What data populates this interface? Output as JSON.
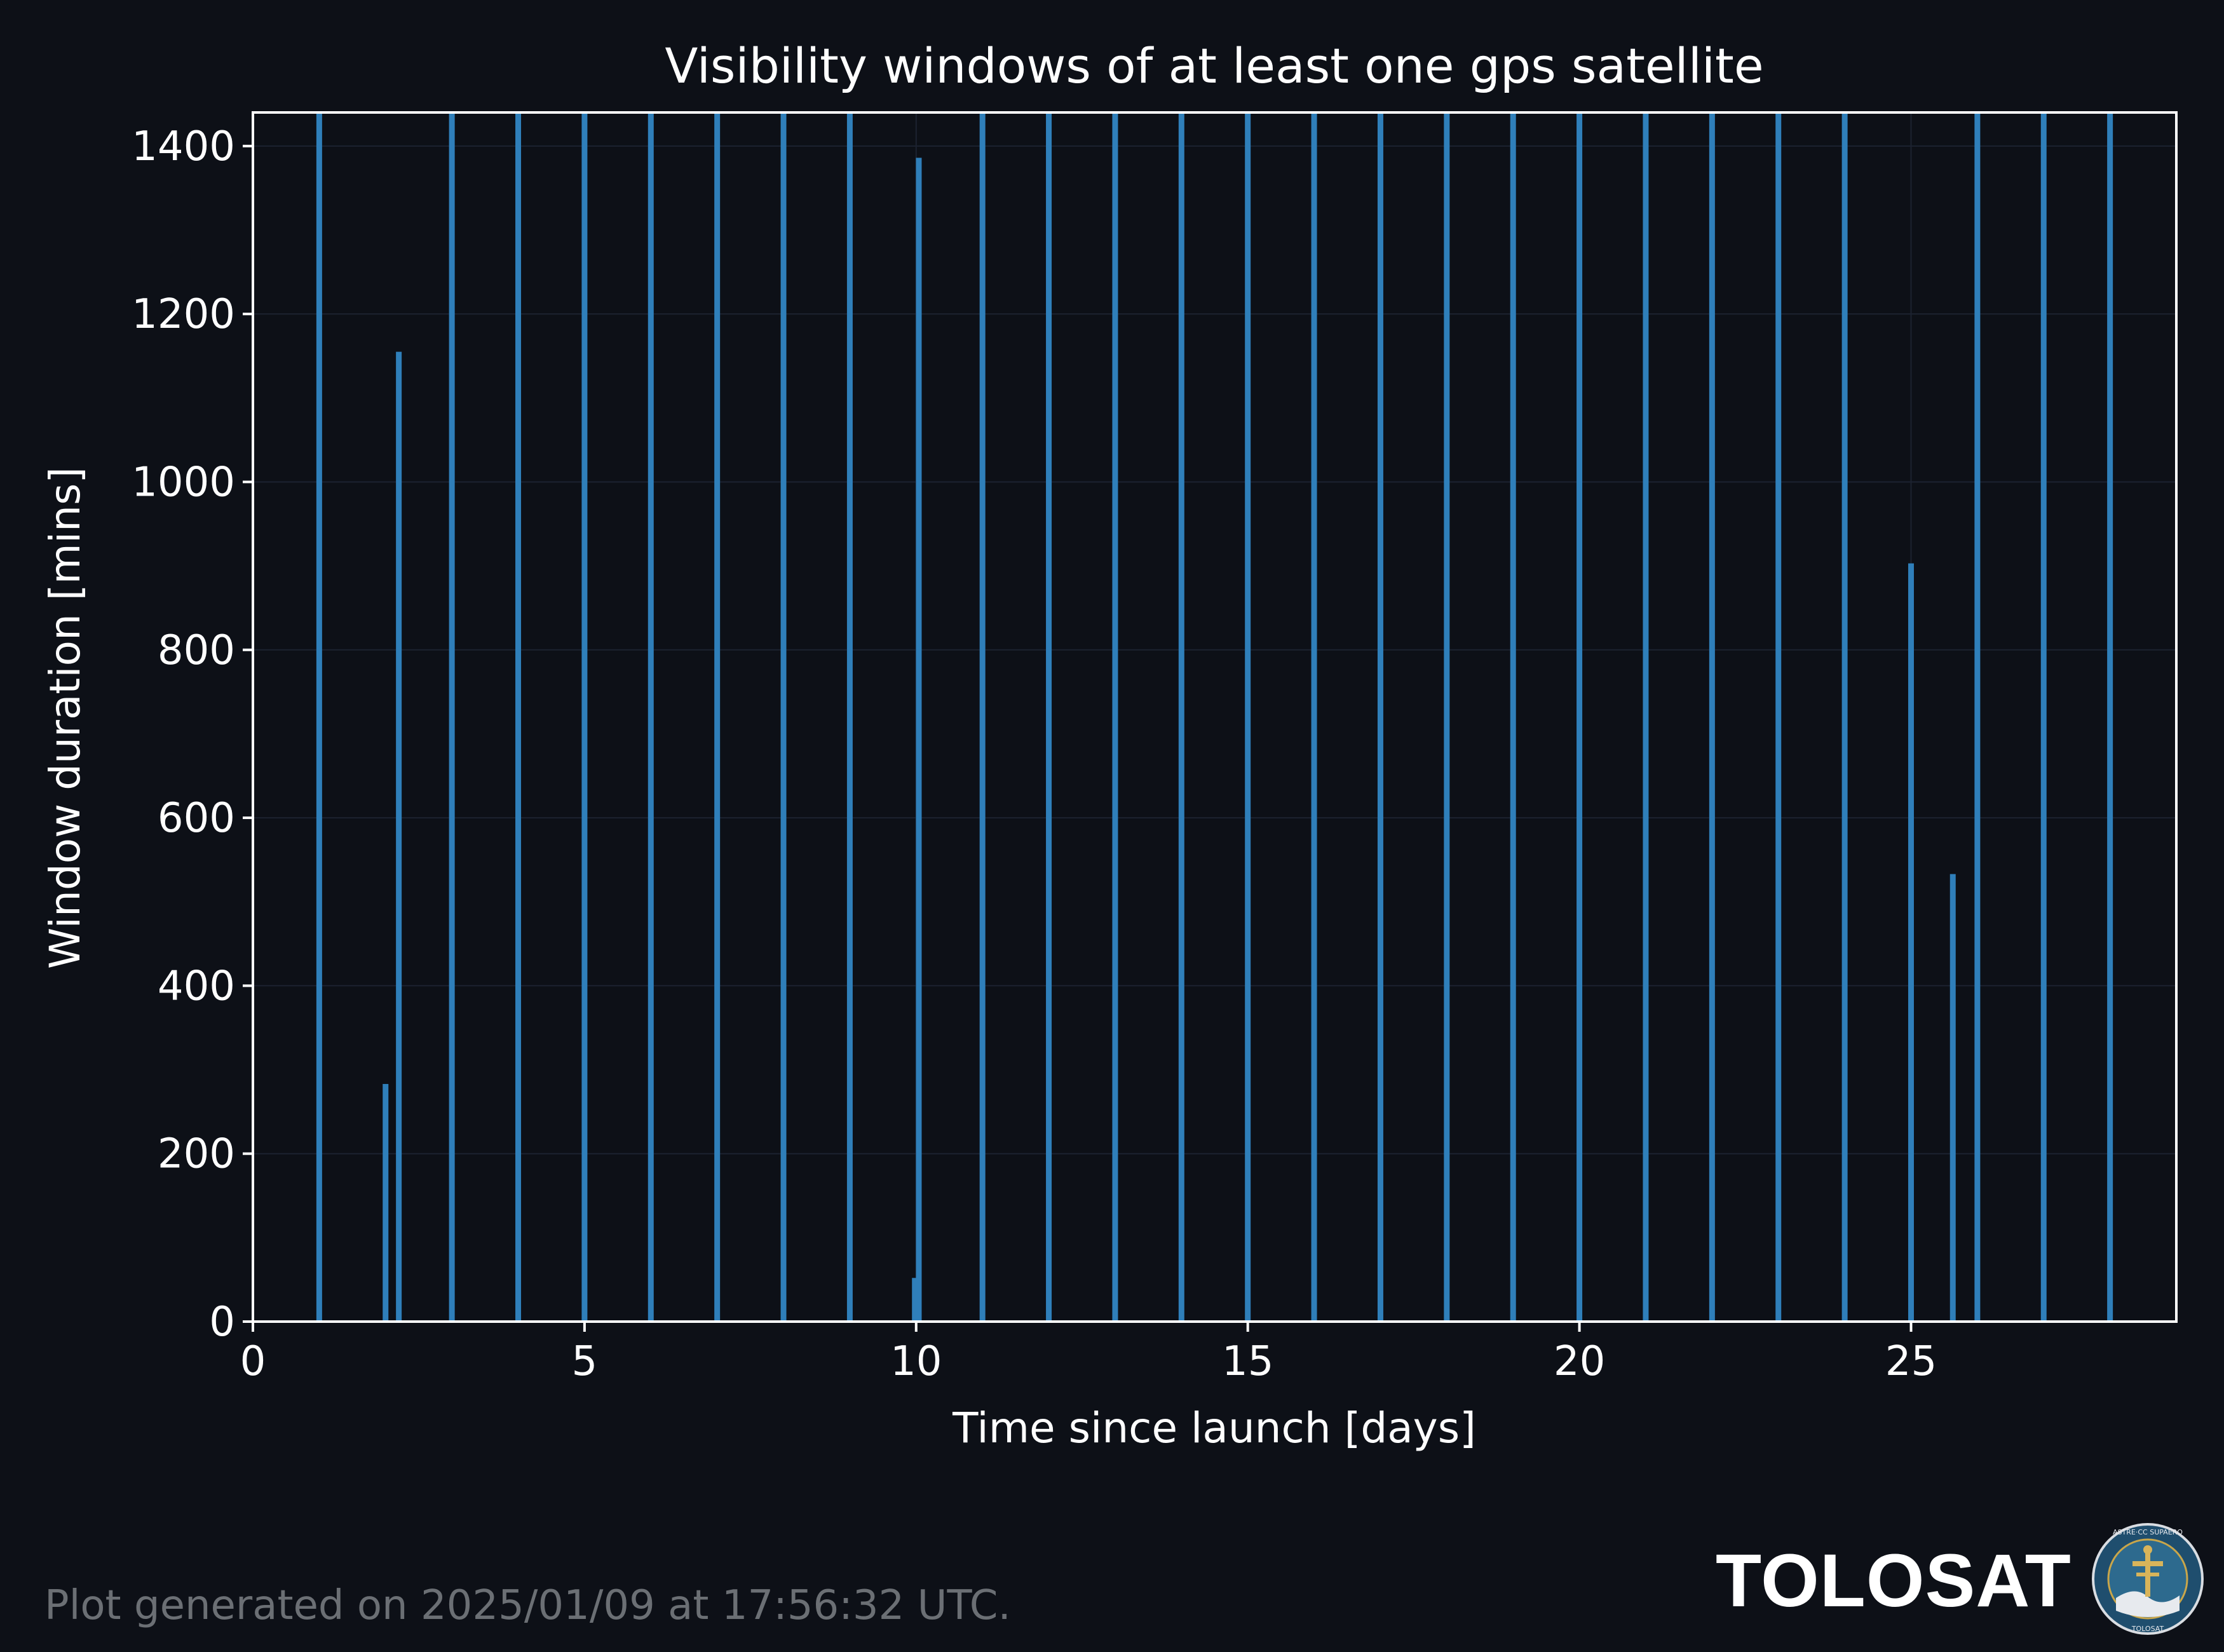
{
  "chart_data": {
    "type": "bar",
    "title": "Visibility windows of at least one gps satellite",
    "xlabel": "Time since launch [days]",
    "ylabel": "Window duration [mins]",
    "xlim": [
      0,
      29
    ],
    "ylim": [
      0,
      1440
    ],
    "xticks": [
      0,
      5,
      10,
      15,
      20,
      25
    ],
    "yticks": [
      0,
      200,
      400,
      600,
      800,
      1000,
      1200,
      1400
    ],
    "grid": true,
    "points": [
      {
        "x": 1.0,
        "y": 1440
      },
      {
        "x": 2.0,
        "y": 283
      },
      {
        "x": 2.2,
        "y": 1155
      },
      {
        "x": 3.0,
        "y": 1440
      },
      {
        "x": 4.0,
        "y": 1440
      },
      {
        "x": 5.0,
        "y": 1440
      },
      {
        "x": 6.0,
        "y": 1440
      },
      {
        "x": 7.0,
        "y": 1440
      },
      {
        "x": 8.0,
        "y": 1440
      },
      {
        "x": 9.0,
        "y": 1440
      },
      {
        "x": 9.98,
        "y": 52
      },
      {
        "x": 10.04,
        "y": 1386
      },
      {
        "x": 11.0,
        "y": 1440
      },
      {
        "x": 12.0,
        "y": 1440
      },
      {
        "x": 13.0,
        "y": 1440
      },
      {
        "x": 14.0,
        "y": 1440
      },
      {
        "x": 15.0,
        "y": 1440
      },
      {
        "x": 16.0,
        "y": 1440
      },
      {
        "x": 17.0,
        "y": 1440
      },
      {
        "x": 18.0,
        "y": 1440
      },
      {
        "x": 19.0,
        "y": 1440
      },
      {
        "x": 20.0,
        "y": 1440
      },
      {
        "x": 21.0,
        "y": 1440
      },
      {
        "x": 22.0,
        "y": 1440
      },
      {
        "x": 23.0,
        "y": 1440
      },
      {
        "x": 24.0,
        "y": 1440
      },
      {
        "x": 25.0,
        "y": 903
      },
      {
        "x": 25.63,
        "y": 533
      },
      {
        "x": 26.0,
        "y": 1440
      },
      {
        "x": 27.0,
        "y": 1440
      },
      {
        "x": 28.0,
        "y": 1440
      }
    ],
    "bar_color": "#2f7fba"
  },
  "footer": {
    "note": "Plot generated on 2025/01/09 at 17:56:32 UTC.",
    "brand": "TOLOSAT",
    "logo_ring_text_top": "ASTRE·CC SUPAERO",
    "logo_ring_text_bottom": "TOLOSAT"
  },
  "colors": {
    "background": "#0d1017",
    "axis": "#ffffff",
    "grid": "#1c2230",
    "bar": "#2f7fba"
  }
}
